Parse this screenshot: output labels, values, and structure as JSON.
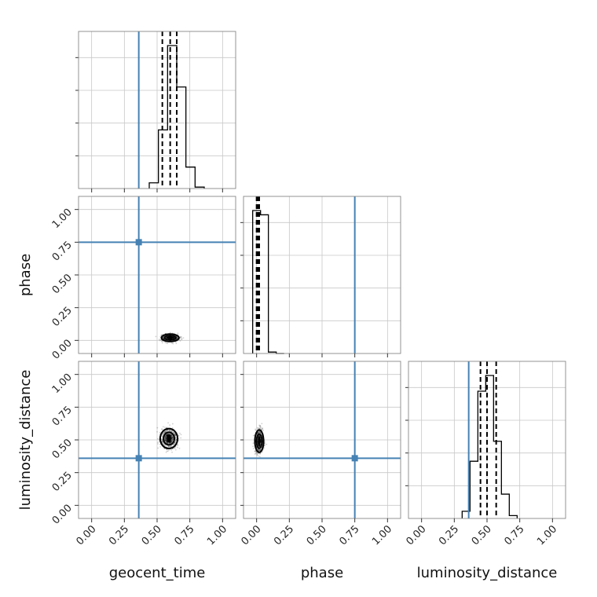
{
  "chart_data": {
    "type": "corner",
    "parameters": [
      "geocent_time",
      "phase",
      "luminosity_distance"
    ],
    "axis_range": [
      -0.1,
      1.1
    ],
    "ticks": [
      0.0,
      0.25,
      0.5,
      0.75,
      1.0
    ],
    "tick_labels": [
      "0.00",
      "0.25",
      "0.50",
      "0.75",
      "1.00"
    ],
    "grid": true,
    "truth_color": "#4682b4",
    "truths": {
      "geocent_time": 0.36,
      "phase": 0.75,
      "luminosity_distance": 0.36
    },
    "histograms": {
      "geocent_time": {
        "bin_edges": [
          0.44,
          0.51,
          0.58,
          0.65,
          0.72,
          0.79,
          0.86
        ],
        "counts": [
          0.04,
          0.41,
          1.0,
          0.71,
          0.15,
          0.01
        ],
        "quantiles": [
          0.54,
          0.6,
          0.65
        ]
      },
      "phase": {
        "bin_edges": [
          -0.03,
          0.03,
          0.09,
          0.15,
          0.21
        ],
        "counts": [
          1.0,
          0.97,
          0.01,
          0.0
        ],
        "quantiles": [
          0.0,
          0.01,
          0.02
        ]
      },
      "luminosity_distance": {
        "bin_edges": [
          0.31,
          0.37,
          0.43,
          0.49,
          0.55,
          0.61,
          0.67,
          0.73
        ],
        "counts": [
          0.05,
          0.4,
          0.89,
          1.0,
          0.54,
          0.17,
          0.02
        ],
        "quantiles": [
          0.45,
          0.5,
          0.57
        ]
      }
    },
    "scatter": {
      "phase_vs_geocent_time": {
        "center": [
          0.6,
          0.02
        ],
        "spread": [
          0.07,
          0.03
        ]
      },
      "luminosity_distance_vs_geocent_time": {
        "center": [
          0.59,
          0.51
        ],
        "spread": [
          0.07,
          0.08
        ]
      },
      "luminosity_distance_vs_phase": {
        "center": [
          0.02,
          0.49
        ],
        "spread": [
          0.035,
          0.09
        ]
      }
    },
    "xlabels": [
      "geocent_time",
      "phase",
      "luminosity_distance"
    ],
    "ylabels": [
      "",
      "phase",
      "luminosity_distance"
    ]
  }
}
